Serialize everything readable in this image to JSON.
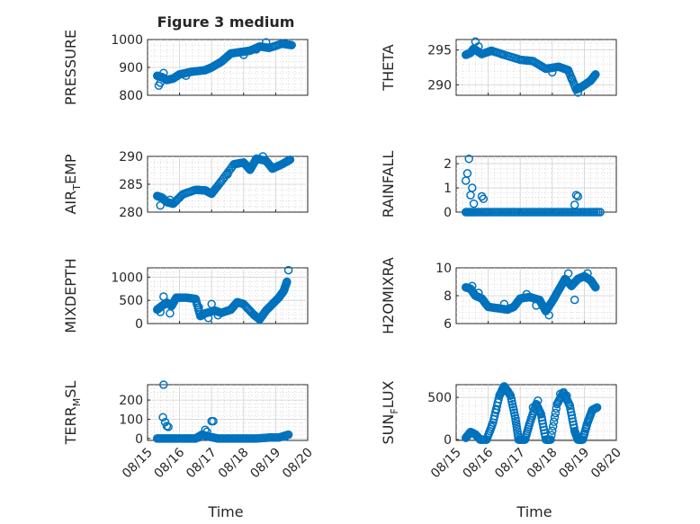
{
  "figure": {
    "title": "Figure 3 medium",
    "xlabel": "Time",
    "xticks": [
      "08/15",
      "08/16",
      "08/17",
      "08/18",
      "08/19",
      "08/20"
    ],
    "marker_color": "#0072BD"
  },
  "chart_data": [
    {
      "type": "scatter",
      "name": "pressure",
      "ylabel": "PRESSURE",
      "title": "Figure 3 medium",
      "xlim": [
        0,
        5
      ],
      "ylim": [
        800,
        1000
      ],
      "yticks": [
        800,
        900,
        1000
      ],
      "ytick_labels": [
        "800",
        "900",
        "1000"
      ],
      "curve": [
        [
          0.3,
          870
        ],
        [
          0.45,
          865
        ],
        [
          0.6,
          855
        ],
        [
          0.8,
          860
        ],
        [
          1.0,
          875
        ],
        [
          1.4,
          885
        ],
        [
          1.8,
          890
        ],
        [
          2.0,
          900
        ],
        [
          2.3,
          920
        ],
        [
          2.6,
          950
        ],
        [
          2.9,
          955
        ],
        [
          3.2,
          960
        ],
        [
          3.5,
          975
        ],
        [
          3.8,
          970
        ],
        [
          4.2,
          985
        ],
        [
          4.5,
          980
        ]
      ],
      "extra": [
        [
          0.35,
          835
        ],
        [
          0.4,
          845
        ],
        [
          0.5,
          880
        ],
        [
          1.2,
          870
        ],
        [
          3.0,
          945
        ],
        [
          3.4,
          965
        ],
        [
          3.7,
          990
        ]
      ]
    },
    {
      "type": "scatter",
      "name": "theta",
      "ylabel": "THETA",
      "xlim": [
        0,
        5
      ],
      "ylim": [
        288.5,
        296.5
      ],
      "yticks": [
        290,
        295
      ],
      "ytick_labels": [
        "290",
        "295"
      ],
      "curve": [
        [
          0.3,
          294.3
        ],
        [
          0.45,
          294.6
        ],
        [
          0.55,
          295.2
        ],
        [
          0.8,
          294.4
        ],
        [
          1.1,
          294.9
        ],
        [
          1.5,
          294.3
        ],
        [
          2.0,
          293.6
        ],
        [
          2.4,
          293.4
        ],
        [
          2.8,
          292.3
        ],
        [
          3.2,
          292.6
        ],
        [
          3.5,
          292.1
        ],
        [
          3.75,
          289.3
        ],
        [
          3.95,
          289.8
        ],
        [
          4.2,
          290.6
        ],
        [
          4.35,
          291.5
        ]
      ],
      "extra": [
        [
          0.6,
          296.2
        ],
        [
          0.7,
          295.5
        ],
        [
          3.0,
          291.8
        ],
        [
          3.6,
          290.9
        ],
        [
          3.8,
          288.9
        ]
      ]
    },
    {
      "type": "scatter",
      "name": "air_temp",
      "ylabel": "AIR_TEMP",
      "xlim": [
        0,
        5
      ],
      "ylim": [
        280,
        290
      ],
      "yticks": [
        280,
        285,
        290
      ],
      "ytick_labels": [
        "280",
        "285",
        "290"
      ],
      "curve": [
        [
          0.3,
          282.9
        ],
        [
          0.45,
          282.6
        ],
        [
          0.6,
          281.8
        ],
        [
          0.8,
          281.5
        ],
        [
          1.1,
          283.2
        ],
        [
          1.5,
          284.0
        ],
        [
          1.8,
          283.9
        ],
        [
          2.0,
          283.3
        ],
        [
          2.3,
          285.5
        ],
        [
          2.7,
          288.6
        ],
        [
          3.0,
          288.9
        ],
        [
          3.2,
          287.6
        ],
        [
          3.4,
          289.6
        ],
        [
          3.7,
          289.2
        ],
        [
          3.9,
          287.8
        ],
        [
          4.2,
          288.6
        ],
        [
          4.45,
          289.4
        ]
      ],
      "extra": [
        [
          0.4,
          281.2
        ],
        [
          0.7,
          282.2
        ],
        [
          2.5,
          286.8
        ],
        [
          3.6,
          290.0
        ]
      ]
    },
    {
      "type": "scatter",
      "name": "rainfall",
      "ylabel": "RAINFALL",
      "xlim": [
        0,
        5
      ],
      "ylim": [
        0,
        2.3
      ],
      "yticks": [
        0,
        1,
        2
      ],
      "ytick_labels": [
        "0",
        "1",
        "2"
      ],
      "curve": [
        [
          0.3,
          0
        ],
        [
          0.6,
          0
        ],
        [
          1.0,
          0
        ],
        [
          1.5,
          0
        ],
        [
          2.0,
          0
        ],
        [
          2.5,
          0
        ],
        [
          3.0,
          0
        ],
        [
          3.5,
          0
        ],
        [
          4.0,
          0
        ],
        [
          4.5,
          0
        ]
      ],
      "extra": [
        [
          0.3,
          1.3
        ],
        [
          0.35,
          1.6
        ],
        [
          0.4,
          2.2
        ],
        [
          0.45,
          0.7
        ],
        [
          0.5,
          1.0
        ],
        [
          0.55,
          0.35
        ],
        [
          0.8,
          0.65
        ],
        [
          0.85,
          0.55
        ],
        [
          3.7,
          0.3
        ],
        [
          3.75,
          0.7
        ],
        [
          3.8,
          0.65
        ]
      ]
    },
    {
      "type": "scatter",
      "name": "mixdepth",
      "ylabel": "MIXDEPTH",
      "xlim": [
        0,
        5
      ],
      "ylim": [
        0,
        1200
      ],
      "yticks": [
        0,
        500,
        1000
      ],
      "ytick_labels": [
        "0",
        "500",
        "1000"
      ],
      "curve": [
        [
          0.3,
          300
        ],
        [
          0.45,
          380
        ],
        [
          0.6,
          450
        ],
        [
          0.75,
          380
        ],
        [
          0.9,
          560
        ],
        [
          1.2,
          560
        ],
        [
          1.5,
          530
        ],
        [
          1.65,
          160
        ],
        [
          1.8,
          220
        ],
        [
          2.1,
          280
        ],
        [
          2.3,
          230
        ],
        [
          2.6,
          300
        ],
        [
          2.8,
          460
        ],
        [
          3.0,
          420
        ],
        [
          3.3,
          200
        ],
        [
          3.5,
          90
        ],
        [
          3.7,
          280
        ],
        [
          3.9,
          420
        ],
        [
          4.1,
          560
        ],
        [
          4.25,
          700
        ],
        [
          4.35,
          900
        ]
      ],
      "extra": [
        [
          0.4,
          250
        ],
        [
          0.5,
          580
        ],
        [
          0.7,
          220
        ],
        [
          1.6,
          350
        ],
        [
          1.9,
          120
        ],
        [
          2.0,
          420
        ],
        [
          2.2,
          180
        ],
        [
          4.4,
          1150
        ]
      ]
    },
    {
      "type": "scatter",
      "name": "h2omixra",
      "ylabel": "H2OMIXRA",
      "xlim": [
        0,
        5
      ],
      "ylim": [
        6,
        10
      ],
      "yticks": [
        6,
        8,
        10
      ],
      "ytick_labels": [
        "6",
        "8",
        "10"
      ],
      "curve": [
        [
          0.3,
          8.6
        ],
        [
          0.45,
          8.5
        ],
        [
          0.6,
          8.0
        ],
        [
          0.8,
          7.8
        ],
        [
          1.0,
          7.2
        ],
        [
          1.3,
          7.1
        ],
        [
          1.6,
          7.0
        ],
        [
          1.8,
          7.2
        ],
        [
          2.0,
          7.8
        ],
        [
          2.3,
          7.9
        ],
        [
          2.6,
          7.7
        ],
        [
          2.8,
          6.9
        ],
        [
          3.0,
          7.6
        ],
        [
          3.2,
          8.4
        ],
        [
          3.4,
          9.2
        ],
        [
          3.6,
          8.7
        ],
        [
          3.8,
          9.2
        ],
        [
          4.0,
          9.4
        ],
        [
          4.2,
          9.1
        ],
        [
          4.35,
          8.6
        ]
      ],
      "extra": [
        [
          0.5,
          8.7
        ],
        [
          0.7,
          8.2
        ],
        [
          1.5,
          7.4
        ],
        [
          2.2,
          8.1
        ],
        [
          2.5,
          7.3
        ],
        [
          2.9,
          6.6
        ],
        [
          3.5,
          9.6
        ],
        [
          3.7,
          7.7
        ],
        [
          4.1,
          9.6
        ]
      ]
    },
    {
      "type": "scatter",
      "name": "terr_msl",
      "ylabel": "TERR_MSL",
      "xlim": [
        0,
        5
      ],
      "ylim": [
        -10,
        280
      ],
      "yticks": [
        0,
        100,
        200
      ],
      "ytick_labels": [
        "0",
        "100",
        "200"
      ],
      "curve": [
        [
          0.3,
          0
        ],
        [
          0.6,
          0
        ],
        [
          0.9,
          0
        ],
        [
          1.2,
          0
        ],
        [
          1.5,
          0
        ],
        [
          1.7,
          20
        ],
        [
          1.9,
          10
        ],
        [
          2.2,
          0
        ],
        [
          2.6,
          0
        ],
        [
          3.0,
          0
        ],
        [
          3.4,
          0
        ],
        [
          3.8,
          5
        ],
        [
          4.1,
          5
        ],
        [
          4.4,
          20
        ]
      ],
      "extra": [
        [
          0.5,
          280
        ],
        [
          0.48,
          110
        ],
        [
          0.55,
          85
        ],
        [
          0.6,
          65
        ],
        [
          0.65,
          60
        ],
        [
          1.8,
          45
        ],
        [
          1.85,
          35
        ],
        [
          2.0,
          90
        ],
        [
          2.05,
          90
        ],
        [
          1.6,
          5
        ],
        [
          4.3,
          10
        ]
      ]
    },
    {
      "type": "scatter",
      "name": "sun_flux",
      "ylabel": "SUN_FLUX",
      "xlim": [
        0,
        5
      ],
      "ylim": [
        -10,
        650
      ],
      "yticks": [
        0,
        500
      ],
      "ytick_labels": [
        "0",
        "500"
      ],
      "curve": [
        [
          0.3,
          20
        ],
        [
          0.45,
          90
        ],
        [
          0.6,
          60
        ],
        [
          0.75,
          0
        ],
        [
          0.95,
          0
        ],
        [
          1.15,
          200
        ],
        [
          1.35,
          520
        ],
        [
          1.5,
          630
        ],
        [
          1.7,
          520
        ],
        [
          1.85,
          250
        ],
        [
          1.95,
          0
        ],
        [
          2.15,
          0
        ],
        [
          2.3,
          200
        ],
        [
          2.5,
          420
        ],
        [
          2.65,
          300
        ],
        [
          2.8,
          0
        ],
        [
          2.95,
          0
        ],
        [
          3.15,
          420
        ],
        [
          3.35,
          560
        ],
        [
          3.55,
          400
        ],
        [
          3.7,
          100
        ],
        [
          3.8,
          0
        ],
        [
          3.95,
          0
        ],
        [
          4.1,
          200
        ],
        [
          4.25,
          350
        ],
        [
          4.4,
          380
        ]
      ],
      "extra": [
        [
          1.25,
          350
        ],
        [
          1.45,
          600
        ],
        [
          1.6,
          580
        ],
        [
          2.4,
          380
        ],
        [
          2.55,
          460
        ],
        [
          3.25,
          540
        ],
        [
          3.45,
          520
        ],
        [
          4.0,
          60
        ]
      ]
    }
  ]
}
